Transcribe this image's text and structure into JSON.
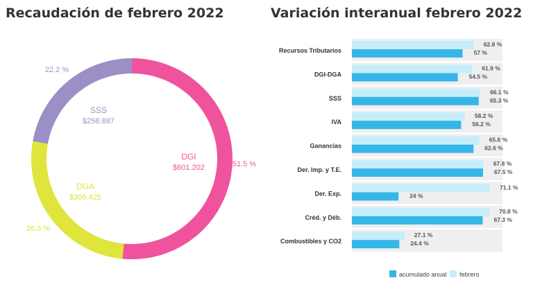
{
  "pie_title": "Recaudación de febrero 2022",
  "bar_title": "Variación interanual febrero 2022",
  "chart_data": [
    {
      "type": "pie",
      "title": "Recaudación de febrero 2022",
      "slices": [
        {
          "name": "DGI",
          "amount_label": "$601.202",
          "percent": 51.5,
          "percent_label": "51.5 %",
          "color": "#ef539e"
        },
        {
          "name": "DGA",
          "amount_label": "$306.425",
          "percent": 26.3,
          "percent_label": "26.3 %",
          "color": "#dfe53b"
        },
        {
          "name": "SSS",
          "amount_label": "$258.887",
          "percent": 22.2,
          "percent_label": "22.2 %",
          "color": "#9b8fc6"
        }
      ]
    },
    {
      "type": "bar",
      "orientation": "horizontal",
      "title": "Variación interanual febrero 2022",
      "categories": [
        "Recursos Tributarios",
        "DGI-DGA",
        "SSS",
        "IVA",
        "Ganancias",
        "Der. Imp. y T.E.",
        "Der. Exp.",
        "Créd. y Déb.",
        "Combustibles y CO2"
      ],
      "series": [
        {
          "name": "febrero",
          "color": "#c5eefb",
          "values": [
            62.8,
            61.9,
            66.1,
            58.2,
            65.6,
            67.8,
            71.1,
            70.8,
            27.1
          ],
          "labels": [
            "62.8 %",
            "61.9 %",
            "66.1 %",
            "58.2 %",
            "65.6 %",
            "67.8 %",
            "71.1 %",
            "70.8 %",
            "27.1 %"
          ]
        },
        {
          "name": "acumulado anual",
          "color": "#36b6e8",
          "values": [
            57,
            54.5,
            65.3,
            56.2,
            62.6,
            67.5,
            24,
            67.3,
            24.4
          ],
          "labels": [
            "57 %",
            "54.5 %",
            "65.3 %",
            "56.2 %",
            "62.6 %",
            "67.5 %",
            "24 %",
            "67.3 %",
            "24.4 %"
          ]
        }
      ],
      "legend_placement": "bottom"
    }
  ]
}
